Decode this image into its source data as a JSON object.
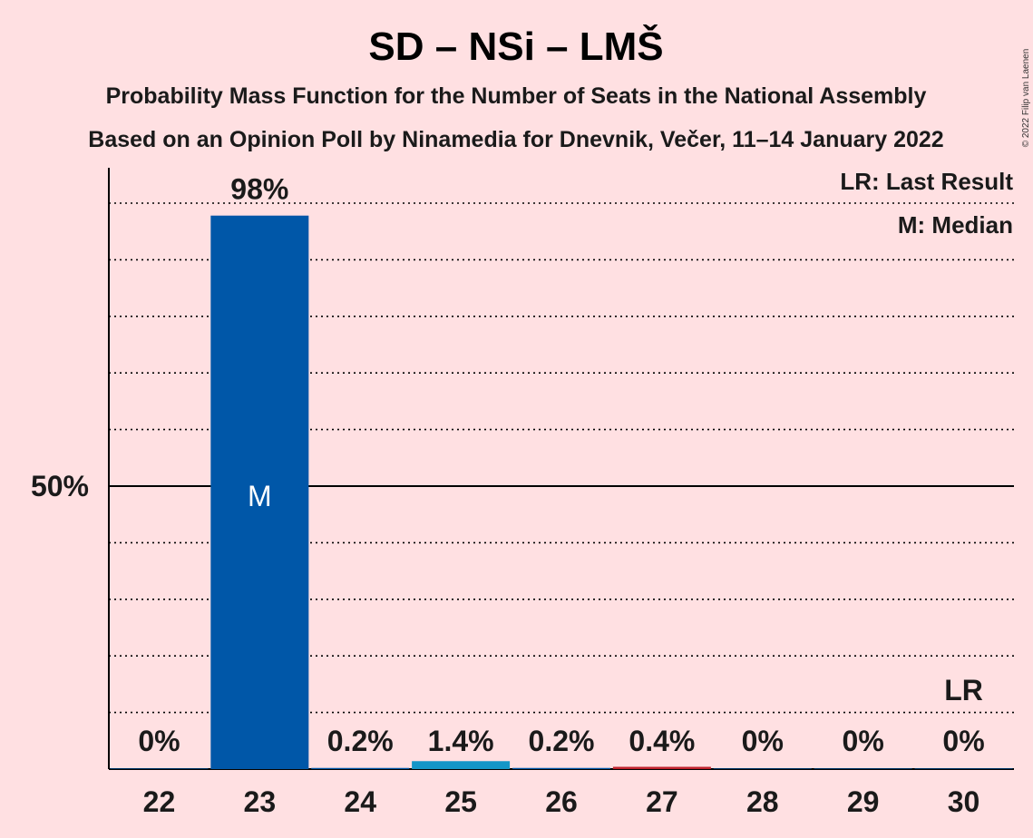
{
  "chart_data": {
    "type": "bar",
    "title": "SD – NSi – LMŠ",
    "subtitle1": "Probability Mass Function for the Number of Seats in the National Assembly",
    "subtitle2": "Based on an Opinion Poll by Ninamedia for Dnevnik, Večer, 11–14 January 2022",
    "copyright": "© 2022 Filip van Laenen",
    "categories": [
      "22",
      "23",
      "24",
      "25",
      "26",
      "27",
      "28",
      "29",
      "30"
    ],
    "values": [
      0,
      97.8,
      0.2,
      1.4,
      0.2,
      0.4,
      0,
      0,
      0
    ],
    "value_labels": [
      "0%",
      "98%",
      "0.2%",
      "1.4%",
      "0.2%",
      "0.4%",
      "0%",
      "0%",
      "0%"
    ],
    "bar_colors": [
      "#0057A8",
      "#0057A8",
      "#0057A8",
      "#1496C8",
      "#0057A8",
      "#C0232D",
      "#0057A8",
      "#0057A8",
      "#0057A8"
    ],
    "median_index": 1,
    "median_label": "M",
    "last_result_index": 8,
    "last_result_label": "LR",
    "ylim": [
      0,
      106
    ],
    "y_tick_label": "50%",
    "y_tick_value": 50,
    "grid_step": 10,
    "legend": {
      "placement": "top-right",
      "items": [
        "LR: Last Result",
        "M: Median"
      ]
    }
  }
}
